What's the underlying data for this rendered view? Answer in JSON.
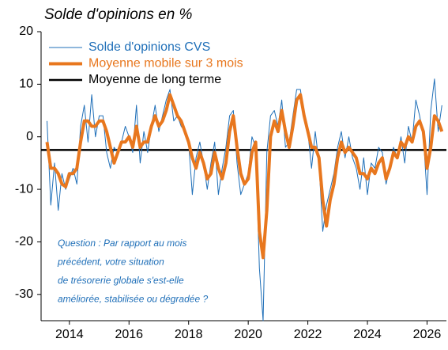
{
  "chart_data": {
    "type": "line",
    "title": "Solde d'opinions en %",
    "annotation": [
      "Question : Par rapport au mois",
      "précédent, votre situation",
      "de trésorerie globale s'est-elle",
      "améliorée, stabilisée ou dégradée ?"
    ],
    "x": [
      2013.25,
      2013.375,
      2013.5,
      2013.625,
      2013.75,
      2013.875,
      2014,
      2014.125,
      2014.25,
      2014.375,
      2014.5,
      2014.625,
      2014.75,
      2014.875,
      2015,
      2015.125,
      2015.25,
      2015.375,
      2015.5,
      2015.625,
      2015.75,
      2015.875,
      2016,
      2016.125,
      2016.25,
      2016.375,
      2016.5,
      2016.625,
      2016.75,
      2016.875,
      2017,
      2017.125,
      2017.25,
      2017.375,
      2017.5,
      2017.625,
      2017.75,
      2017.875,
      2018,
      2018.125,
      2018.25,
      2018.375,
      2018.5,
      2018.625,
      2018.75,
      2018.875,
      2019,
      2019.125,
      2019.25,
      2019.375,
      2019.5,
      2019.625,
      2019.75,
      2019.875,
      2020,
      2020.125,
      2020.25,
      2020.375,
      2020.5,
      2020.625,
      2020.75,
      2020.875,
      2021,
      2021.125,
      2021.25,
      2021.375,
      2021.5,
      2021.625,
      2021.75,
      2021.875,
      2022,
      2022.125,
      2022.25,
      2022.375,
      2022.5,
      2022.625,
      2022.75,
      2022.875,
      2023,
      2023.125,
      2023.25,
      2023.375,
      2023.5,
      2023.625,
      2023.75,
      2023.875,
      2024,
      2024.125,
      2024.25,
      2024.375,
      2024.5,
      2024.625,
      2024.75,
      2024.875,
      2025,
      2025.125,
      2025.25,
      2025.375,
      2025.5,
      2025.625,
      2025.75,
      2025.875,
      2026,
      2026.125,
      2026.25,
      2026.375,
      2026.5
    ],
    "series": [
      {
        "name": "Solde d'opinions CVS",
        "color": "#1f6fb8",
        "width": 1,
        "values": [
          3,
          -13,
          -5,
          -14,
          -7,
          -10,
          -8,
          -6,
          -9,
          2,
          6,
          -1,
          8,
          0,
          4,
          4,
          -3,
          -6,
          -2,
          -3,
          -1,
          2,
          0,
          -3,
          6,
          -5,
          1,
          -3,
          2,
          6,
          1,
          4,
          7,
          9,
          3,
          4,
          2,
          1,
          -1,
          -11,
          -4,
          -1,
          -5,
          -10,
          -5,
          -1,
          -11,
          -6,
          -2,
          4,
          5,
          -5,
          -11,
          -9,
          -7,
          0,
          -2,
          -25,
          -35,
          -3,
          4,
          5,
          2,
          7,
          -2,
          -1,
          4,
          9,
          9,
          4,
          1,
          -6,
          1,
          -5,
          -18,
          -13,
          -10,
          -7,
          -2,
          1,
          -4,
          0,
          -4,
          -6,
          -10,
          -4,
          -11,
          -5,
          -6,
          -2,
          -3,
          -9,
          -6,
          -2,
          -4,
          0,
          -5,
          2,
          -1,
          7,
          4,
          0,
          -11,
          5,
          11,
          1,
          6
        ]
      },
      {
        "name": "Moyenne mobile sur 3 mois",
        "color": "#e8771e",
        "width": 4,
        "values": [
          -1,
          -6,
          -6,
          -7,
          -9,
          -9.5,
          -7,
          -7,
          -6,
          -1,
          3,
          3,
          2,
          2,
          3,
          3,
          1,
          -2,
          -5,
          -3,
          -1,
          -1,
          0,
          -2,
          2,
          -2,
          -1,
          -1,
          2,
          4,
          2,
          3,
          5,
          8,
          6,
          4,
          3,
          1,
          -1,
          -4,
          -6,
          -3,
          -5,
          -8,
          -7,
          -3,
          -6,
          -8,
          -5,
          1,
          4,
          -2,
          -7,
          -9,
          -8,
          -3,
          -1,
          -18,
          -23,
          -14,
          0,
          3,
          1,
          5,
          1,
          -2,
          2,
          7,
          8,
          4,
          1,
          -2,
          -2,
          -4,
          -12,
          -17,
          -12,
          -9,
          -4,
          -1,
          -3,
          -2,
          -3,
          -4,
          -7,
          -7,
          -8,
          -6,
          -7,
          -5,
          -4,
          -8,
          -6,
          -3,
          -4,
          -1,
          -2,
          0,
          -1,
          2,
          3,
          1,
          -6,
          -2,
          4,
          3,
          1
        ]
      }
    ],
    "reference_line": {
      "name": "Moyenne de long terme",
      "value": -2.5,
      "color": "#000000"
    },
    "xlim": [
      2013.05,
      2026.65
    ],
    "xticks": [
      2014,
      2016,
      2018,
      2020,
      2022,
      2024,
      2026
    ],
    "ylim": [
      -35,
      20
    ],
    "yticks": [
      -30,
      -20,
      -10,
      0,
      10,
      20
    ]
  }
}
